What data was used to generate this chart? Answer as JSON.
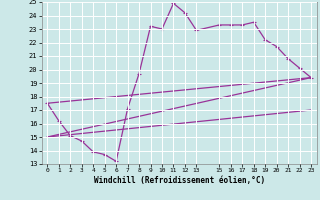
{
  "xlabel": "Windchill (Refroidissement éolien,°C)",
  "xlim": [
    -0.5,
    23.5
  ],
  "ylim": [
    13,
    25
  ],
  "xticks": [
    0,
    1,
    2,
    3,
    4,
    5,
    6,
    7,
    8,
    9,
    10,
    11,
    12,
    13,
    15,
    16,
    17,
    18,
    19,
    20,
    21,
    22,
    23
  ],
  "yticks": [
    13,
    14,
    15,
    16,
    17,
    18,
    19,
    20,
    21,
    22,
    23,
    24,
    25
  ],
  "background_color": "#cce8e8",
  "grid_color": "#ffffff",
  "line_color": "#993399",
  "line1_x": [
    0,
    1,
    2,
    3,
    4,
    5,
    6,
    7,
    8,
    9,
    10,
    11,
    12,
    13,
    15,
    16,
    17,
    18,
    19,
    20,
    21,
    22,
    23
  ],
  "line1_y": [
    17.5,
    16.2,
    15.1,
    14.7,
    13.9,
    13.7,
    13.2,
    17.1,
    19.7,
    23.2,
    23.0,
    24.9,
    24.2,
    22.9,
    23.3,
    23.3,
    23.3,
    23.5,
    22.2,
    21.7,
    20.8,
    20.1,
    19.4
  ],
  "line2_x": [
    0,
    23
  ],
  "line2_y": [
    17.5,
    19.4
  ],
  "line3_x": [
    0,
    23
  ],
  "line3_y": [
    15.0,
    19.4
  ],
  "line4_x": [
    0,
    23
  ],
  "line4_y": [
    15.0,
    17.0
  ]
}
